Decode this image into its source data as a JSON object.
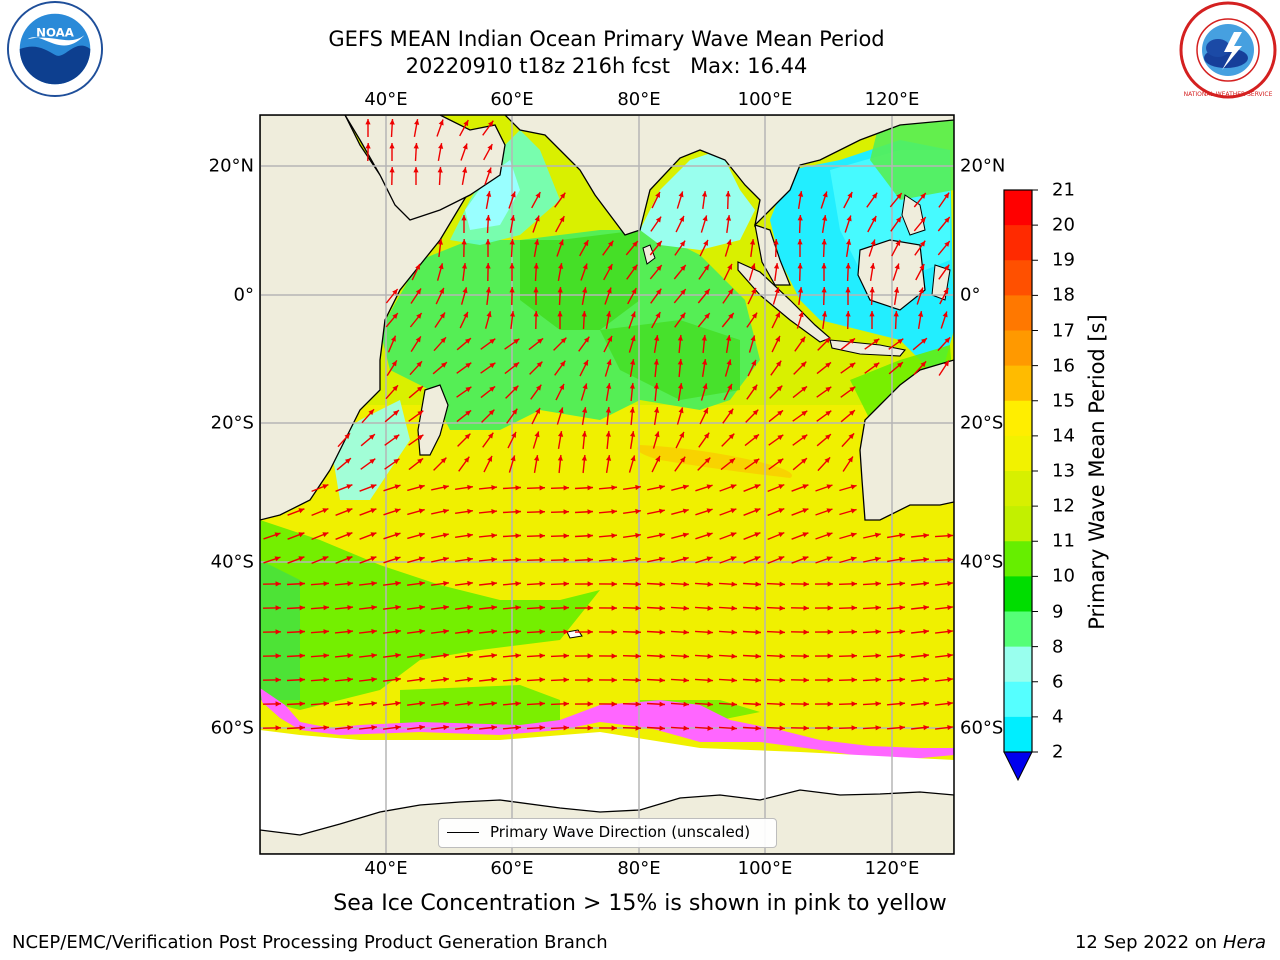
{
  "title": {
    "line1": "GEFS MEAN Indian Ocean Primary Wave Mean Period",
    "line2": "20220910 t18z 216h fcst   Max: 16.44"
  },
  "logos": {
    "left_text": "NOAA",
    "right_text": "NATIONAL WEATHER SERVICE"
  },
  "map": {
    "lon_ticks": [
      "40°E",
      "60°E",
      "80°E",
      "100°E",
      "120°E"
    ],
    "lat_ticks": [
      "20°N",
      "0°",
      "20°S",
      "40°S",
      "60°S"
    ],
    "colors": {
      "land": "#efeddc",
      "arrow": "#ee0000",
      "grid": "#b5b5b5",
      "sea_ice": "#ff66ff"
    },
    "legend_label": "Primary Wave Direction (unscaled)"
  },
  "colorbar": {
    "label": "Primary Wave Mean Period [s]",
    "ticks": [
      "21",
      "20",
      "19",
      "18",
      "17",
      "16",
      "15",
      "14",
      "13",
      "12",
      "11",
      "10",
      "9",
      "8",
      "6",
      "4",
      "2"
    ],
    "colors": [
      "#ff0000",
      "#ff2a00",
      "#ff5000",
      "#ff7800",
      "#ff9900",
      "#ffbb00",
      "#ffee00",
      "#f2f200",
      "#d7f000",
      "#c2f000",
      "#66ee00",
      "#00dd00",
      "#55ff77",
      "#99ffee",
      "#55ffff",
      "#00eeff",
      "#0077ff"
    ],
    "extend_color": "#0000ee"
  },
  "caption": "Sea Ice Concentration > 15% is shown in pink to yellow",
  "footer": {
    "left": "NCEP/EMC/Verification Post Processing Product Generation Branch",
    "right_date": "12 Sep 2022 on",
    "right_host": "Hera"
  }
}
